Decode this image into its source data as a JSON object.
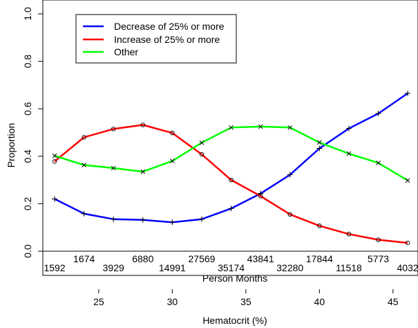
{
  "chart_data": {
    "type": "line",
    "title": "",
    "xlabel": "Hematocrit (%)",
    "ylabel": "Proportion",
    "xlim": [
      21.2,
      46.7
    ],
    "ylim": [
      0.0,
      1.0
    ],
    "x_ticks": [
      25,
      30,
      35,
      40,
      45
    ],
    "y_ticks": [
      "0.0",
      "0.2",
      "0.4",
      "0.6",
      "0.8",
      "1.0"
    ],
    "grid": false,
    "legend_position": "top-left",
    "x": [
      22,
      24,
      26,
      28,
      30,
      32,
      34,
      36,
      38,
      40,
      42,
      44,
      46
    ],
    "series": [
      {
        "name": "Decrease of 25% or more",
        "color": "#0000ff",
        "marker": "plus",
        "values": [
          0.22,
          0.158,
          0.135,
          0.132,
          0.122,
          0.135,
          0.18,
          0.243,
          0.322,
          0.433,
          0.517,
          0.58,
          0.665
        ]
      },
      {
        "name": "Increase of 25% or more",
        "color": "#ff0000",
        "marker": "circle",
        "values": [
          0.378,
          0.48,
          0.515,
          0.532,
          0.498,
          0.408,
          0.3,
          0.232,
          0.155,
          0.107,
          0.072,
          0.048,
          0.035
        ]
      },
      {
        "name": "Other",
        "color": "#00ff00",
        "marker": "x",
        "values": [
          0.402,
          0.363,
          0.35,
          0.335,
          0.38,
          0.457,
          0.521,
          0.525,
          0.521,
          0.458,
          0.411,
          0.372,
          0.298
        ]
      }
    ],
    "person_months": {
      "label": "Person Months",
      "values": [
        "1592",
        "1674",
        "3929",
        "6880",
        "14991",
        "27569",
        "35174",
        "43841",
        "32280",
        "17844",
        "11518",
        "5773",
        "4032"
      ]
    }
  }
}
